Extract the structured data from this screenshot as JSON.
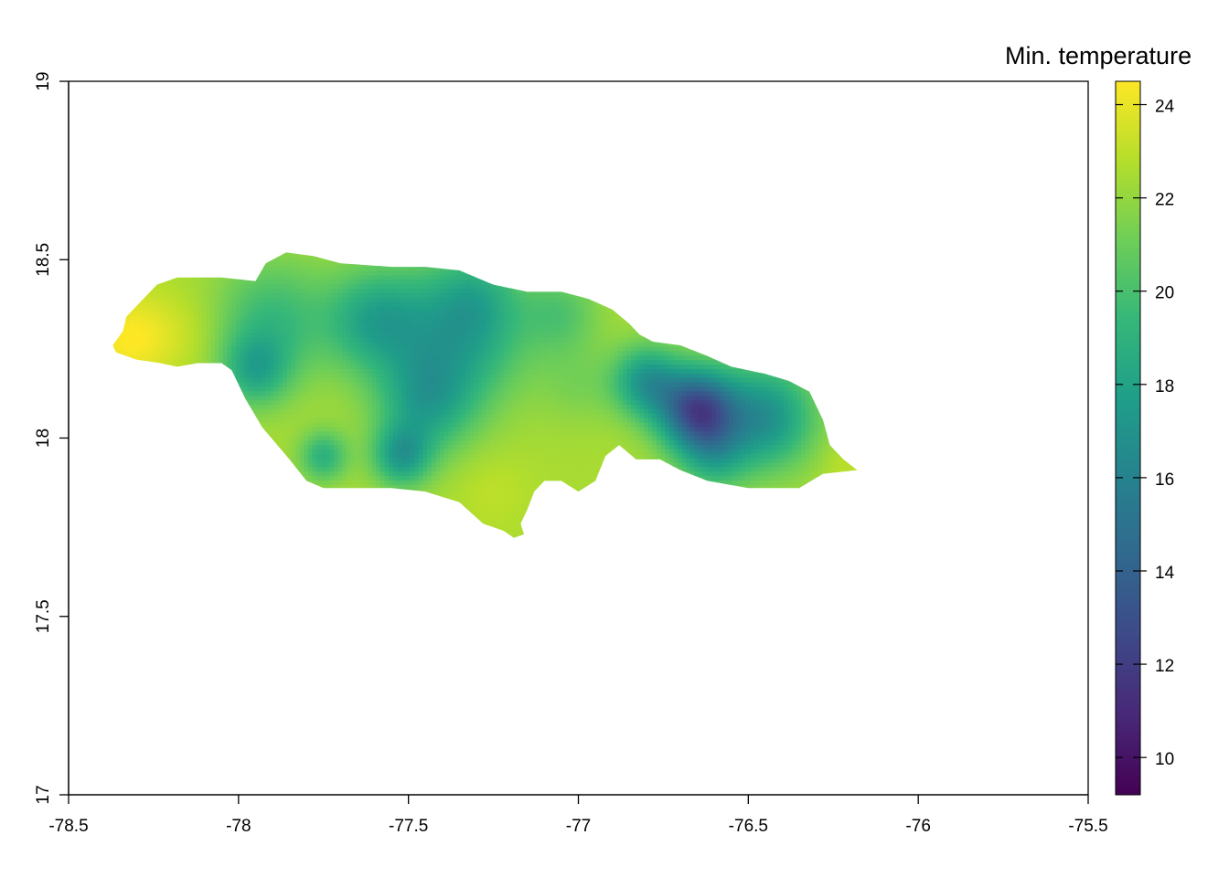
{
  "chart_data": {
    "type": "heatmap",
    "title": "",
    "xlabel": "",
    "ylabel": "",
    "xlim": [
      -78.5,
      -75.5
    ],
    "ylim": [
      17,
      19
    ],
    "x_ticks": [
      {
        "value": -78.5,
        "label": "-78.5"
      },
      {
        "value": -78,
        "label": "-78"
      },
      {
        "value": -77.5,
        "label": "-77.5"
      },
      {
        "value": -77,
        "label": "-77"
      },
      {
        "value": -76.5,
        "label": "-76.5"
      },
      {
        "value": -76,
        "label": "-76"
      },
      {
        "value": -75.5,
        "label": "-75.5"
      }
    ],
    "y_ticks": [
      {
        "value": 17,
        "label": "17"
      },
      {
        "value": 17.5,
        "label": "17.5"
      },
      {
        "value": 18,
        "label": "18"
      },
      {
        "value": 18.5,
        "label": "18.5"
      },
      {
        "value": 19,
        "label": "19"
      }
    ],
    "legend": {
      "title": "Min. temperature",
      "placement": "right",
      "range": [
        9.2,
        24.5
      ],
      "ticks": [
        {
          "value": 10,
          "label": "10"
        },
        {
          "value": 12,
          "label": "12"
        },
        {
          "value": 14,
          "label": "14"
        },
        {
          "value": 16,
          "label": "16"
        },
        {
          "value": 18,
          "label": "18"
        },
        {
          "value": 20,
          "label": "20"
        },
        {
          "value": 22,
          "label": "22"
        },
        {
          "value": 24,
          "label": "24"
        }
      ],
      "colors": [
        "#440154",
        "#482878",
        "#3e4989",
        "#31688e",
        "#26828e",
        "#1f9e89",
        "#35b779",
        "#6ece58",
        "#b5de2b",
        "#fde725"
      ]
    },
    "grid": false,
    "regions": [
      {
        "name": "Jamaica",
        "outline": [
          [
            -78.37,
            18.26
          ],
          [
            -78.34,
            18.3
          ],
          [
            -78.33,
            18.34
          ],
          [
            -78.3,
            18.37
          ],
          [
            -78.24,
            18.43
          ],
          [
            -78.18,
            18.45
          ],
          [
            -78.05,
            18.45
          ],
          [
            -77.95,
            18.44
          ],
          [
            -77.92,
            18.49
          ],
          [
            -77.86,
            18.52
          ],
          [
            -77.78,
            18.51
          ],
          [
            -77.7,
            18.49
          ],
          [
            -77.55,
            18.48
          ],
          [
            -77.45,
            18.48
          ],
          [
            -77.35,
            18.47
          ],
          [
            -77.25,
            18.43
          ],
          [
            -77.15,
            18.41
          ],
          [
            -77.05,
            18.41
          ],
          [
            -76.97,
            18.39
          ],
          [
            -76.9,
            18.36
          ],
          [
            -76.85,
            18.32
          ],
          [
            -76.82,
            18.29
          ],
          [
            -76.78,
            18.27
          ],
          [
            -76.7,
            18.26
          ],
          [
            -76.62,
            18.23
          ],
          [
            -76.55,
            18.2
          ],
          [
            -76.45,
            18.18
          ],
          [
            -76.38,
            18.16
          ],
          [
            -76.32,
            18.13
          ],
          [
            -76.28,
            18.05
          ],
          [
            -76.26,
            17.98
          ],
          [
            -76.22,
            17.94
          ],
          [
            -76.18,
            17.91
          ],
          [
            -76.28,
            17.9
          ],
          [
            -76.35,
            17.86
          ],
          [
            -76.5,
            17.86
          ],
          [
            -76.62,
            17.88
          ],
          [
            -76.7,
            17.91
          ],
          [
            -76.76,
            17.94
          ],
          [
            -76.83,
            17.94
          ],
          [
            -76.88,
            17.98
          ],
          [
            -76.92,
            17.95
          ],
          [
            -76.95,
            17.88
          ],
          [
            -77.0,
            17.85
          ],
          [
            -77.05,
            17.88
          ],
          [
            -77.1,
            17.88
          ],
          [
            -77.13,
            17.85
          ],
          [
            -77.15,
            17.8
          ],
          [
            -77.17,
            17.76
          ],
          [
            -77.16,
            17.73
          ],
          [
            -77.19,
            17.72
          ],
          [
            -77.22,
            17.74
          ],
          [
            -77.28,
            17.76
          ],
          [
            -77.35,
            17.82
          ],
          [
            -77.45,
            17.85
          ],
          [
            -77.55,
            17.86
          ],
          [
            -77.65,
            17.86
          ],
          [
            -77.75,
            17.86
          ],
          [
            -77.8,
            17.88
          ],
          [
            -77.85,
            17.94
          ],
          [
            -77.93,
            18.03
          ],
          [
            -77.98,
            18.11
          ],
          [
            -78.02,
            18.19
          ],
          [
            -78.05,
            18.21
          ],
          [
            -78.12,
            18.21
          ],
          [
            -78.18,
            18.2
          ],
          [
            -78.23,
            18.21
          ],
          [
            -78.3,
            18.22
          ],
          [
            -78.36,
            18.24
          ]
        ],
        "temperature_field": {
          "base": 22.5,
          "features": [
            {
              "lon": -78.32,
              "lat": 18.28,
              "sigma": 0.09,
              "delta": 2.0
            },
            {
              "lon": -78.15,
              "lat": 18.3,
              "sigma": 0.08,
              "delta": 0.6
            },
            {
              "lon": -77.9,
              "lat": 18.33,
              "sigma": 0.12,
              "delta": -3.0
            },
            {
              "lon": -77.95,
              "lat": 18.19,
              "sigma": 0.07,
              "delta": -3.5
            },
            {
              "lon": -77.6,
              "lat": 18.33,
              "sigma": 0.1,
              "delta": -4.0
            },
            {
              "lon": -77.35,
              "lat": 18.3,
              "sigma": 0.14,
              "delta": -4.5
            },
            {
              "lon": -77.45,
              "lat": 18.1,
              "sigma": 0.1,
              "delta": -4.0
            },
            {
              "lon": -77.52,
              "lat": 17.95,
              "sigma": 0.06,
              "delta": -4.5
            },
            {
              "lon": -77.75,
              "lat": 17.95,
              "sigma": 0.05,
              "delta": -3.5
            },
            {
              "lon": -77.3,
              "lat": 18.4,
              "sigma": 0.08,
              "delta": -1.5
            },
            {
              "lon": -77.05,
              "lat": 18.35,
              "sigma": 0.08,
              "delta": -2.0
            },
            {
              "lon": -77.0,
              "lat": 18.15,
              "sigma": 0.08,
              "delta": -1.0
            },
            {
              "lon": -76.65,
              "lat": 18.08,
              "sigma": 0.08,
              "delta": -9.5
            },
            {
              "lon": -76.8,
              "lat": 18.16,
              "sigma": 0.07,
              "delta": -5.0
            },
            {
              "lon": -76.45,
              "lat": 18.06,
              "sigma": 0.1,
              "delta": -5.5
            },
            {
              "lon": -76.6,
              "lat": 17.95,
              "sigma": 0.07,
              "delta": -3.0
            },
            {
              "lon": -77.25,
              "lat": 17.85,
              "sigma": 0.08,
              "delta": 0.5
            },
            {
              "lon": -76.22,
              "lat": 17.93,
              "sigma": 0.05,
              "delta": 0.5
            }
          ]
        }
      }
    ]
  }
}
